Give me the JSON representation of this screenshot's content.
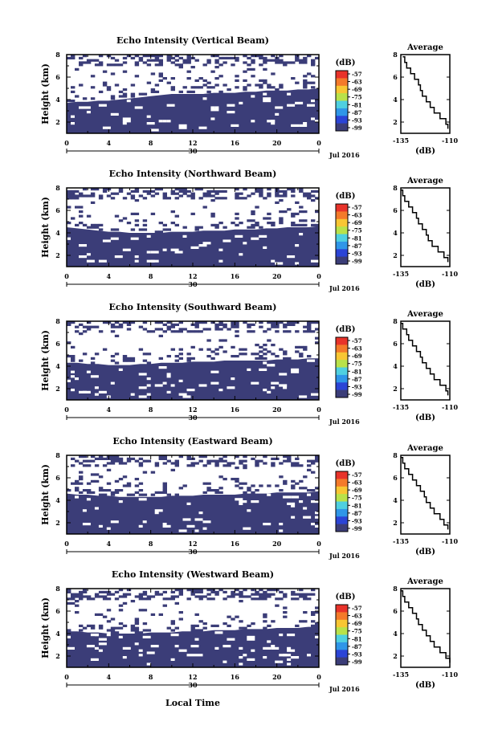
{
  "page": {
    "xlabel": "Local Time"
  },
  "colors": {
    "fill": "#3b3d78",
    "background": "#ffffff",
    "line": "#000000"
  },
  "colorbar": {
    "label": "(dB)",
    "ticks": [
      "-57",
      "-63",
      "-69",
      "-75",
      "-81",
      "-87",
      "-93",
      "-99"
    ],
    "colors": [
      "#e8332a",
      "#f47a2a",
      "#f8c633",
      "#b9e24a",
      "#4fd0e0",
      "#2f96e8",
      "#2b44d6",
      "#3b3d78"
    ]
  },
  "chart_data": [
    {
      "type": "heatmap",
      "title": "Echo Intensity (Vertical Beam)",
      "ylabel": "Height (km)",
      "yticks": [
        "2",
        "4",
        "6",
        "8"
      ],
      "xticks": [
        "0",
        "4",
        "8",
        "12",
        "16",
        "20",
        "0"
      ],
      "date_day": "30",
      "date_label": "Jul 2016",
      "xlim": [
        0,
        24
      ],
      "ylim": [
        1,
        8
      ],
      "fill_top_km": [
        3.7,
        3.8,
        3.8,
        3.9,
        3.9,
        4.0,
        4.1,
        4.2,
        4.3,
        4.4,
        4.5,
        4.5,
        4.5,
        4.5,
        4.6,
        4.6,
        4.6,
        4.7,
        4.7,
        4.8,
        4.8,
        4.8,
        4.9,
        4.9,
        5.0
      ],
      "average": {
        "title": "Average",
        "xlabel": "(dB)",
        "xticks": [
          "-135",
          "-110"
        ],
        "yticks": [
          "2",
          "4",
          "6",
          "8"
        ],
        "xlim": [
          -135,
          -110
        ],
        "ylim": [
          1,
          8
        ],
        "profile_db": [
          -111,
          -112,
          -115,
          -118,
          -120,
          -122,
          -124,
          -125,
          -126,
          -128,
          -130,
          -132,
          -133,
          -134
        ],
        "profile_km": [
          1.4,
          1.8,
          2.3,
          2.8,
          3.3,
          3.8,
          4.3,
          4.8,
          5.3,
          5.8,
          6.3,
          6.8,
          7.3,
          7.8
        ]
      }
    },
    {
      "type": "heatmap",
      "title": "Echo Intensity (Northward Beam)",
      "ylabel": "Height (km)",
      "yticks": [
        "2",
        "4",
        "6",
        "8"
      ],
      "xticks": [
        "0",
        "4",
        "8",
        "12",
        "16",
        "20",
        "0"
      ],
      "date_day": "30",
      "date_label": "Jul 2016",
      "xlim": [
        0,
        24
      ],
      "ylim": [
        1,
        8
      ],
      "fill_top_km": [
        4.5,
        4.4,
        4.3,
        4.2,
        4.1,
        4.1,
        4.0,
        4.0,
        4.0,
        4.0,
        4.1,
        4.1,
        4.1,
        4.2,
        4.2,
        4.2,
        4.3,
        4.3,
        4.3,
        4.4,
        4.4,
        4.5,
        4.5,
        4.5,
        4.6
      ],
      "average": {
        "title": "Average",
        "xlabel": "(dB)",
        "xticks": [
          "-135",
          "-110"
        ],
        "yticks": [
          "2",
          "4",
          "6",
          "8"
        ],
        "xlim": [
          -135,
          -110
        ],
        "ylim": [
          1,
          8
        ],
        "profile_db": [
          -111,
          -113,
          -116,
          -119,
          -121,
          -122,
          -124,
          -126,
          -127,
          -129,
          -131,
          -133,
          -134,
          -135
        ],
        "profile_km": [
          1.4,
          1.8,
          2.3,
          2.8,
          3.3,
          3.8,
          4.3,
          4.8,
          5.3,
          5.8,
          6.3,
          6.8,
          7.3,
          7.8
        ]
      }
    },
    {
      "type": "heatmap",
      "title": "Echo Intensity (Southward Beam)",
      "ylabel": "Height (km)",
      "yticks": [
        "2",
        "4",
        "6",
        "8"
      ],
      "xticks": [
        "0",
        "4",
        "8",
        "12",
        "16",
        "20",
        "0"
      ],
      "date_day": "30",
      "date_label": "Jul 2016",
      "xlim": [
        0,
        24
      ],
      "ylim": [
        1,
        8
      ],
      "fill_top_km": [
        4.3,
        4.3,
        4.2,
        4.2,
        4.1,
        4.1,
        4.1,
        4.2,
        4.2,
        4.3,
        4.3,
        4.3,
        4.4,
        4.4,
        4.4,
        4.5,
        4.5,
        4.5,
        4.5,
        4.5,
        4.6,
        4.6,
        4.6,
        4.7,
        4.7
      ],
      "average": {
        "title": "Average",
        "xlabel": "(dB)",
        "xticks": [
          "-135",
          "-110"
        ],
        "yticks": [
          "2",
          "4",
          "6",
          "8"
        ],
        "xlim": [
          -135,
          -110
        ],
        "ylim": [
          1,
          8
        ],
        "profile_db": [
          -111,
          -112,
          -115,
          -118,
          -120,
          -122,
          -124,
          -125,
          -127,
          -129,
          -131,
          -132,
          -134,
          -135
        ],
        "profile_km": [
          1.4,
          1.8,
          2.3,
          2.8,
          3.3,
          3.8,
          4.3,
          4.8,
          5.3,
          5.8,
          6.3,
          6.8,
          7.3,
          7.8
        ]
      }
    },
    {
      "type": "heatmap",
      "title": "Echo Intensity (Eastward Beam)",
      "ylabel": "Height (km)",
      "yticks": [
        "2",
        "4",
        "6",
        "8"
      ],
      "xticks": [
        "0",
        "4",
        "8",
        "12",
        "16",
        "20",
        "0"
      ],
      "date_day": "30",
      "date_label": "Jul 2016",
      "xlim": [
        0,
        24
      ],
      "ylim": [
        1,
        8
      ],
      "fill_top_km": [
        4.6,
        4.5,
        4.5,
        4.4,
        4.4,
        4.3,
        4.3,
        4.3,
        4.3,
        4.3,
        4.4,
        4.4,
        4.4,
        4.5,
        4.5,
        4.5,
        4.5,
        4.6,
        4.6,
        4.6,
        4.7,
        4.7,
        4.7,
        4.7,
        4.8
      ],
      "average": {
        "title": "Average",
        "xlabel": "(dB)",
        "xticks": [
          "-135",
          "-110"
        ],
        "yticks": [
          "2",
          "4",
          "6",
          "8"
        ],
        "xlim": [
          -135,
          -110
        ],
        "ylim": [
          1,
          8
        ],
        "profile_db": [
          -111,
          -113,
          -115,
          -118,
          -120,
          -122,
          -123,
          -125,
          -127,
          -129,
          -131,
          -133,
          -134,
          -135
        ],
        "profile_km": [
          1.4,
          1.8,
          2.3,
          2.8,
          3.3,
          3.8,
          4.3,
          4.8,
          5.3,
          5.8,
          6.3,
          6.8,
          7.3,
          7.8
        ]
      }
    },
    {
      "type": "heatmap",
      "title": "Echo Intensity (Westward Beam)",
      "ylabel": "Height (km)",
      "yticks": [
        "2",
        "4",
        "6",
        "8"
      ],
      "xticks": [
        "0",
        "4",
        "8",
        "12",
        "16",
        "20",
        "0"
      ],
      "date_day": "30",
      "date_label": "Jul 2016",
      "xlim": [
        0,
        24
      ],
      "ylim": [
        1,
        8
      ],
      "fill_top_km": [
        4.2,
        4.2,
        4.1,
        4.1,
        4.0,
        4.0,
        4.0,
        4.0,
        4.1,
        4.1,
        4.1,
        4.2,
        4.2,
        4.2,
        4.3,
        4.3,
        4.3,
        4.4,
        4.4,
        4.4,
        4.5,
        4.5,
        4.5,
        4.6,
        4.6
      ],
      "average": {
        "title": "Average",
        "xlabel": "(dB)",
        "xticks": [
          "-135",
          "-110"
        ],
        "yticks": [
          "2",
          "4",
          "6",
          "8"
        ],
        "xlim": [
          -135,
          -110
        ],
        "ylim": [
          1,
          8
        ],
        "profile_db": [
          -110,
          -112,
          -115,
          -118,
          -120,
          -122,
          -124,
          -126,
          -127,
          -129,
          -131,
          -133,
          -134,
          -135
        ],
        "profile_km": [
          1.4,
          1.8,
          2.3,
          2.8,
          3.3,
          3.8,
          4.3,
          4.8,
          5.3,
          5.8,
          6.3,
          6.8,
          7.3,
          7.8
        ]
      }
    }
  ]
}
